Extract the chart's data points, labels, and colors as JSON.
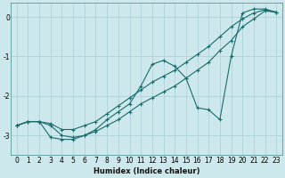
{
  "title": "",
  "xlabel": "Humidex (Indice chaleur)",
  "ylabel": "",
  "bg_color": "#cce8ec",
  "grid_color": "#aacdd4",
  "line_color": "#1a6b6b",
  "xlim": [
    -0.5,
    23.5
  ],
  "ylim": [
    -3.5,
    0.35
  ],
  "yticks": [
    0,
    -1,
    -2,
    -3
  ],
  "xticks": [
    0,
    1,
    2,
    3,
    4,
    5,
    6,
    7,
    8,
    9,
    10,
    11,
    12,
    13,
    14,
    15,
    16,
    17,
    18,
    19,
    20,
    21,
    22,
    23
  ],
  "line1_x": [
    0,
    1,
    2,
    3,
    4,
    5,
    6,
    7,
    8,
    9,
    10,
    11,
    12,
    13,
    14,
    15,
    16,
    17,
    18,
    19,
    20,
    21,
    22,
    23
  ],
  "line1_y": [
    -2.75,
    -2.65,
    -2.65,
    -2.75,
    -3.0,
    -3.05,
    -3.0,
    -2.9,
    -2.75,
    -2.6,
    -2.4,
    -2.2,
    -2.05,
    -1.9,
    -1.75,
    -1.55,
    -1.35,
    -1.15,
    -0.85,
    -0.6,
    -0.25,
    -0.05,
    0.15,
    0.12
  ],
  "line2_x": [
    0,
    1,
    2,
    3,
    4,
    5,
    6,
    7,
    8,
    9,
    10,
    11,
    12,
    13,
    14,
    15,
    16,
    17,
    18,
    19,
    20,
    21,
    22,
    23
  ],
  "line2_y": [
    -2.75,
    -2.65,
    -2.65,
    -3.05,
    -3.1,
    -3.1,
    -3.0,
    -2.85,
    -2.6,
    -2.4,
    -2.2,
    -1.75,
    -1.2,
    -1.1,
    -1.25,
    -1.55,
    -2.3,
    -2.35,
    -2.6,
    -1.0,
    0.1,
    0.2,
    0.2,
    0.12
  ],
  "line3_x": [
    0,
    1,
    2,
    3,
    4,
    5,
    6,
    7,
    8,
    9,
    10,
    11,
    12,
    13,
    14,
    15,
    16,
    17,
    18,
    19,
    20,
    21,
    22,
    23
  ],
  "line3_y": [
    -2.75,
    -2.65,
    -2.65,
    -2.7,
    -2.85,
    -2.85,
    -2.75,
    -2.65,
    -2.45,
    -2.25,
    -2.05,
    -1.85,
    -1.65,
    -1.5,
    -1.35,
    -1.15,
    -0.95,
    -0.75,
    -0.5,
    -0.25,
    -0.05,
    0.1,
    0.18,
    0.12
  ]
}
